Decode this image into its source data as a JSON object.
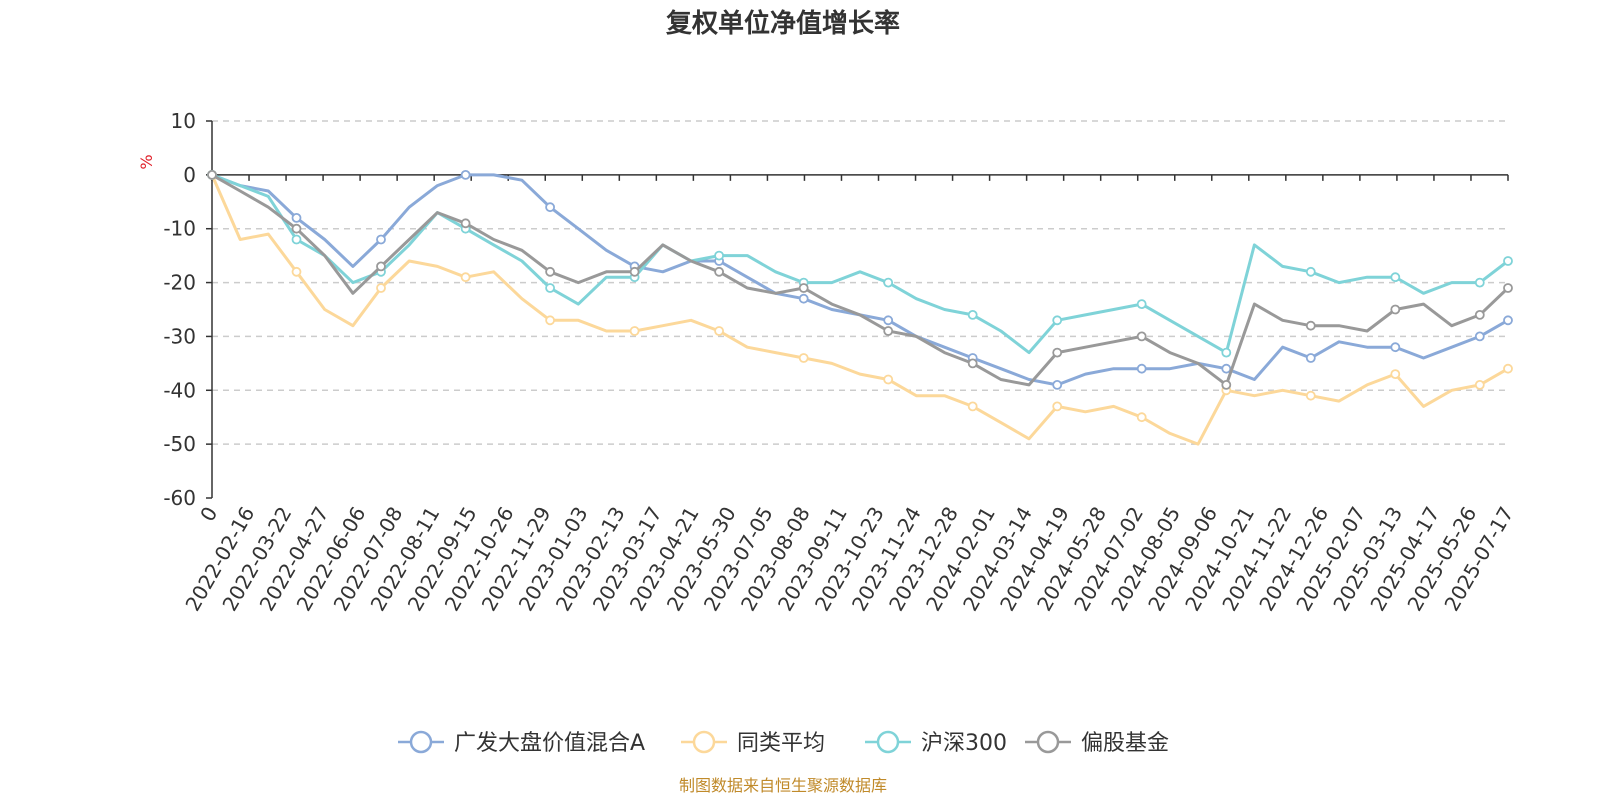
{
  "chart_data": {
    "type": "line",
    "title": "复权单位净值增长率",
    "ylabel": "%",
    "ylim": [
      -60,
      10
    ],
    "yticks": [
      10,
      0,
      -10,
      -20,
      -30,
      -40,
      -50,
      -60
    ],
    "grid": true,
    "legend_position": "bottom",
    "x_tick_labels": [
      "0",
      "2022-02-16",
      "2022-03-22",
      "2022-04-27",
      "2022-06-06",
      "2022-07-08",
      "2022-08-11",
      "2022-09-15",
      "2022-10-26",
      "2022-11-29",
      "2023-01-03",
      "2023-02-13",
      "2023-03-17",
      "2023-04-21",
      "2023-05-30",
      "2023-07-05",
      "2023-08-08",
      "2023-09-11",
      "2023-10-23",
      "2023-11-24",
      "2023-12-28",
      "2024-02-01",
      "2024-03-14",
      "2024-04-19",
      "2024-05-28",
      "2024-07-02",
      "2024-08-05",
      "2024-09-06",
      "2024-10-21",
      "2024-11-22",
      "2024-12-26",
      "2025-02-07",
      "2025-03-13",
      "2025-04-17",
      "2025-05-26",
      "2025-07-17"
    ],
    "series": [
      {
        "name": "广发大盘价值混合A",
        "color": "#8aa9d8",
        "values": [
          0,
          -2,
          -3,
          -8,
          -12,
          -17,
          -12,
          -6,
          -2,
          0,
          0,
          -1,
          -6,
          -10,
          -14,
          -17,
          -18,
          -16,
          -16,
          -19,
          -22,
          -23,
          -25,
          -26,
          -27,
          -30,
          -32,
          -34,
          -36,
          -38,
          -39,
          -37,
          -36,
          -36,
          -36,
          -35,
          -36,
          -38,
          -32,
          -34,
          -31,
          -32,
          -32,
          -34,
          -32,
          -30,
          -27
        ]
      },
      {
        "name": "同类平均",
        "color": "#fcd89a",
        "values": [
          0,
          -12,
          -11,
          -18,
          -25,
          -28,
          -21,
          -16,
          -17,
          -19,
          -18,
          -23,
          -27,
          -27,
          -29,
          -29,
          -28,
          -27,
          -29,
          -32,
          -33,
          -34,
          -35,
          -37,
          -38,
          -41,
          -41,
          -43,
          -46,
          -49,
          -43,
          -44,
          -43,
          -45,
          -48,
          -50,
          -40,
          -41,
          -40,
          -41,
          -42,
          -39,
          -37,
          -43,
          -40,
          -39,
          -36
        ]
      },
      {
        "name": "沪深300",
        "color": "#7fd3d8",
        "values": [
          0,
          -2,
          -4,
          -12,
          -15,
          -20,
          -18,
          -13,
          -7,
          -10,
          -13,
          -16,
          -21,
          -24,
          -19,
          -19,
          -13,
          -16,
          -15,
          -15,
          -18,
          -20,
          -20,
          -18,
          -20,
          -23,
          -25,
          -26,
          -29,
          -33,
          -27,
          -26,
          -25,
          -24,
          -27,
          -30,
          -33,
          -13,
          -17,
          -18,
          -20,
          -19,
          -19,
          -22,
          -20,
          -20,
          -16
        ]
      },
      {
        "name": "偏股基金",
        "color": "#999999",
        "values": [
          0,
          -3,
          -6,
          -10,
          -15,
          -22,
          -17,
          -12,
          -7,
          -9,
          -12,
          -14,
          -18,
          -20,
          -18,
          -18,
          -13,
          -16,
          -18,
          -21,
          -22,
          -21,
          -24,
          -26,
          -29,
          -30,
          -33,
          -35,
          -38,
          -39,
          -33,
          -32,
          -31,
          -30,
          -33,
          -35,
          -39,
          -24,
          -27,
          -28,
          -28,
          -29,
          -25,
          -24,
          -28,
          -26,
          -21
        ]
      }
    ]
  },
  "source_note": "制图数据来自恒生聚源数据库"
}
